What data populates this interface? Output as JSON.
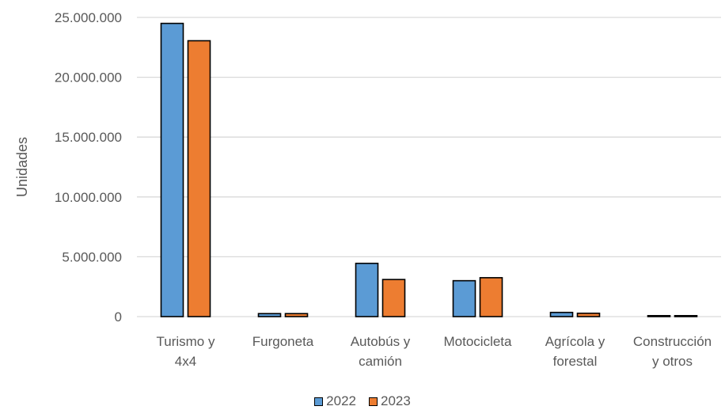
{
  "chart_data": {
    "type": "bar",
    "title": "",
    "xlabel": "",
    "ylabel": "Unidades",
    "ylim": [
      0,
      25000000
    ],
    "yticks": [
      0,
      5000000,
      10000000,
      15000000,
      20000000,
      25000000
    ],
    "ytick_labels": [
      "0",
      "5.000.000",
      "10.000.000",
      "15.000.000",
      "20.000.000",
      "25.000.000"
    ],
    "categories": [
      [
        "Turismo y",
        "4x4"
      ],
      [
        "Furgoneta"
      ],
      [
        "Autobús y",
        "camión"
      ],
      [
        "Motocicleta"
      ],
      [
        "Agrícola y",
        "forestal"
      ],
      [
        "Construcción",
        "y otros"
      ]
    ],
    "series": [
      {
        "name": "2022",
        "color": "#5b9bd5",
        "values": [
          24500000,
          250000,
          4450000,
          3000000,
          350000,
          80000
        ]
      },
      {
        "name": "2023",
        "color": "#ed7d31",
        "values": [
          23050000,
          250000,
          3100000,
          3250000,
          280000,
          80000
        ]
      }
    ],
    "grid": true,
    "legend_position": "bottom"
  }
}
